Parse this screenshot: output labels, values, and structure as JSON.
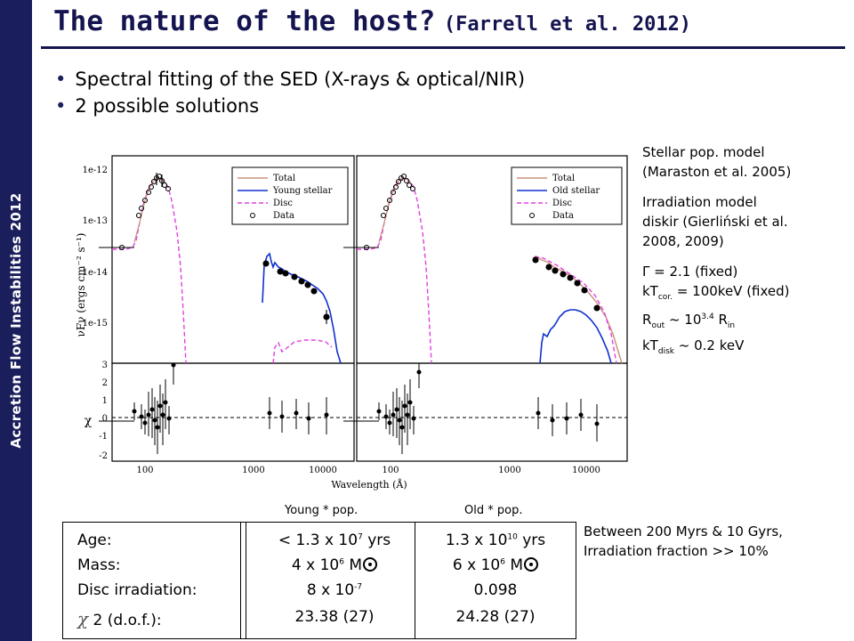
{
  "sidebar": {
    "label": "Accretion Flow Instabilities 2012"
  },
  "title": {
    "main": "The nature of the host?",
    "ref": "(Farrell et al. 2012)"
  },
  "bullets": [
    "Spectral fitting of the SED (X-rays & optical/NIR)",
    "2 possible solutions"
  ],
  "figure": {
    "ylabel": "νFν (ergs cm⁻² s⁻¹)",
    "xlabel": "Wavelength (Å)",
    "chi_label": "χ",
    "y_ticks": [
      "1e-12",
      "1e-13",
      "1e-14",
      "1e-15"
    ],
    "chi_ticks": [
      "3",
      "2",
      "1",
      "0",
      "-1",
      "-2"
    ],
    "x_ticks": [
      "100",
      "1000",
      "10000"
    ],
    "legend_left": [
      "Total",
      "Young stellar",
      "Disc",
      "Data"
    ],
    "legend_right": [
      "Total",
      "Old stellar",
      "Disc",
      "Data"
    ],
    "colors": {
      "total": "#c89078",
      "stellar": "#1030d0",
      "disc": "#e040e0",
      "data": "#000000"
    }
  },
  "notes": {
    "model1": [
      "Stellar pop. model",
      "(Maraston et al. 2005)"
    ],
    "model2": [
      "Irradiation model",
      "diskir (Gierliński et al.",
      "2008, 2009)"
    ],
    "params": {
      "gamma": "Γ = 2.1 (fixed)",
      "kt_cor_a": "kT",
      "kt_cor_sub": "cor.",
      "kt_cor_b": " = 100keV (fixed)",
      "rout_a": "R",
      "rout_sub": "out",
      "rout_b": " ~ 10",
      "rout_sup": "3.4",
      "rout_c": " R",
      "rout_sub2": "in",
      "ktdisk_a": "kT",
      "ktdisk_sub": "disk",
      "ktdisk_b": " ~ 0.2 keV"
    }
  },
  "table": {
    "col_young": "Young * pop.",
    "col_old": "Old * pop.",
    "labels": [
      "Age:",
      "Mass:",
      "Disc irradiation:",
      "2 (d.o.f.):"
    ],
    "young": {
      "age_a": "< 1.3 x 10",
      "age_sup": "7",
      "age_b": " yrs",
      "mass_a": "4 x 10",
      "mass_sup": "6",
      "mass_b": " M",
      "irr_a": "8 x 10",
      "irr_sup": "-7",
      "chi": "23.38 (27)"
    },
    "old": {
      "age_a": "1.3 x 10",
      "age_sup": "10",
      "age_b": " yrs",
      "mass_a": "6 x 10",
      "mass_sup": "6",
      "mass_b": " M",
      "irr": "0.098",
      "chi": "24.28 (27)"
    }
  },
  "summary": [
    "Between 200 Myrs & 10 Gyrs,",
    "Irradiation fraction >> 10%"
  ]
}
